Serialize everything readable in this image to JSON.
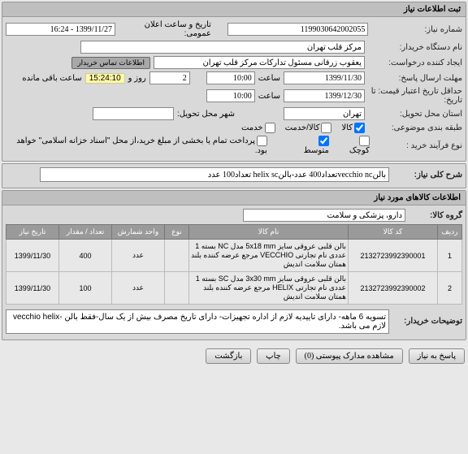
{
  "panel1": {
    "title": "ثبت اطلاعات نیاز",
    "rows": {
      "need_no_label": "شماره نیاز:",
      "need_no": "1199030642002055",
      "announce_label": "تاریخ و ساعت اعلان عمومی:",
      "announce_value": "1399/11/27 - 16:24",
      "buyer_label": "نام دستگاه خریدار:",
      "buyer_value": "مرکز قلب تهران",
      "creator_label": "ایجاد کننده درخواست:",
      "creator_value": "يعقوب زرقانی مسئول تدارکات مرکز قلب تهران",
      "contact_btn": "اطلاعات تماس خریدار",
      "deadline_label": "مهلت ارسال پاسخ:",
      "deadline_date": "1399/11/30",
      "deadline_sep": "ساعت",
      "deadline_time": "10:00",
      "remain_days": "2",
      "remain_days_label": "روز و",
      "remain_time": "15:24:10",
      "remain_suffix": "ساعت باقی مانده",
      "validity_label": "حداقل تاریخ اعتبار قیمت: تا تاریخ:",
      "validity_date": "1399/12/30",
      "validity_time": "10:00",
      "delivery_state_label": "استان محل تحویل:",
      "delivery_state": "تهران",
      "delivery_city_label": "شهر محل تحویل:",
      "delivery_city": "",
      "group_label": "طبقه بندی موضوعی:",
      "group_kala": "کالا",
      "group_khadmat": "کالا/خدمت",
      "group_service": "خدمت",
      "grade_label": "نوع فرآیند خرید :",
      "grade_small": "کوچک",
      "grade_medium": "متوسط",
      "pay_note": "پرداخت تمام یا بخشی از مبلغ خرید،از محل \"اسناد خزانه اسلامی\" خواهد بود."
    }
  },
  "panel2": {
    "desc_label": "شرح کلی نیاز:",
    "desc_value": "بالنvecchio ncتعداد400 عدد-بالنhelix sc تعداد100 عدد"
  },
  "panel3": {
    "title": "اطلاعات کالاهای مورد نیاز",
    "group_label": "گروه کالا:",
    "group_value": "دارو، پزشکی و سلامت",
    "columns": [
      "ردیف",
      "کد کالا",
      "نام کالا",
      "نوع",
      "واحد شمارش",
      "تعداد / مقدار",
      "تاریخ نیاز"
    ],
    "rows": [
      {
        "idx": "1",
        "code": "2132723992390001",
        "name": "بالن قلبی عروقی سایز 5x18 mm مدل NC بسته 1 عددی نام تجارتی VECCHIO مرجع عرضه کننده بلند همتان سلامت اندیش",
        "type": "",
        "unit": "عدد",
        "qty": "400",
        "date": "1399/11/30"
      },
      {
        "idx": "2",
        "code": "2132723992390002",
        "name": "بالن قلبی عروقی سایز 3x30 mm مدل SC بسته 1 عددی نام تجارتی HELIX مرجع عرضه کننده بلند همتان سلامت اندیش",
        "type": "",
        "unit": "عدد",
        "qty": "100",
        "date": "1399/11/30"
      }
    ],
    "notes_label": "توضیحات خریدار:",
    "notes_value": "تسویه 6 ماهه- دارای تاییدیه لازم از اداره تجهیزات- دارای تاریخ مصرف بیش از یک سال-فقط بالن -vecchio helix لازم می باشد."
  },
  "footer": {
    "reply": "پاسخ به نیاز",
    "attach": "مشاهده مدارک پیوستی  (0)",
    "print": "چاپ",
    "back": "بازگشت"
  }
}
